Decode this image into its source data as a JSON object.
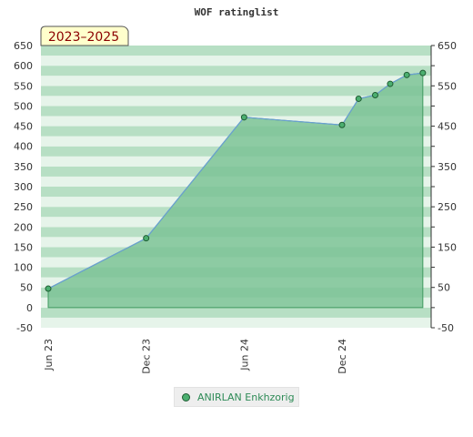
{
  "chart_data": {
    "type": "area",
    "title": "WOF ratinglist",
    "badge": "2023–2025",
    "y_ticks": [
      650,
      600,
      550,
      500,
      450,
      400,
      350,
      300,
      250,
      200,
      150,
      100,
      50,
      0,
      -50
    ],
    "y_right_ticks": [
      650,
      550,
      450,
      350,
      250,
      150,
      50,
      -50
    ],
    "ylim": [
      -50,
      650
    ],
    "x_ticks": [
      "Jun 23",
      "Dec 23",
      "Jun 24",
      "Dec 24"
    ],
    "series": [
      {
        "name": "ANIRLAN Enkhzorig",
        "points": [
          {
            "x": "2023-06-01",
            "y": 47
          },
          {
            "x": "2023-12-01",
            "y": 172
          },
          {
            "x": "2024-06-01",
            "y": 472
          },
          {
            "x": "2024-12-01",
            "y": 453
          },
          {
            "x": "2025-01-01",
            "y": 518
          },
          {
            "x": "2025-02-01",
            "y": 527
          },
          {
            "x": "2025-03-01",
            "y": 555
          },
          {
            "x": "2025-04-01",
            "y": 577
          },
          {
            "x": "2025-05-01",
            "y": 582
          }
        ]
      }
    ],
    "colors": {
      "band_dark": "#b7dfc4",
      "band_light": "#e6f4ea",
      "fill": "#7cc396",
      "line": "#6a9fd4",
      "marker": "#4caf70",
      "marker_edge": "#1f5c33",
      "badge_bg": "#ffffcc"
    }
  },
  "legend": {
    "label": "ANIRLAN Enkhzorig"
  }
}
